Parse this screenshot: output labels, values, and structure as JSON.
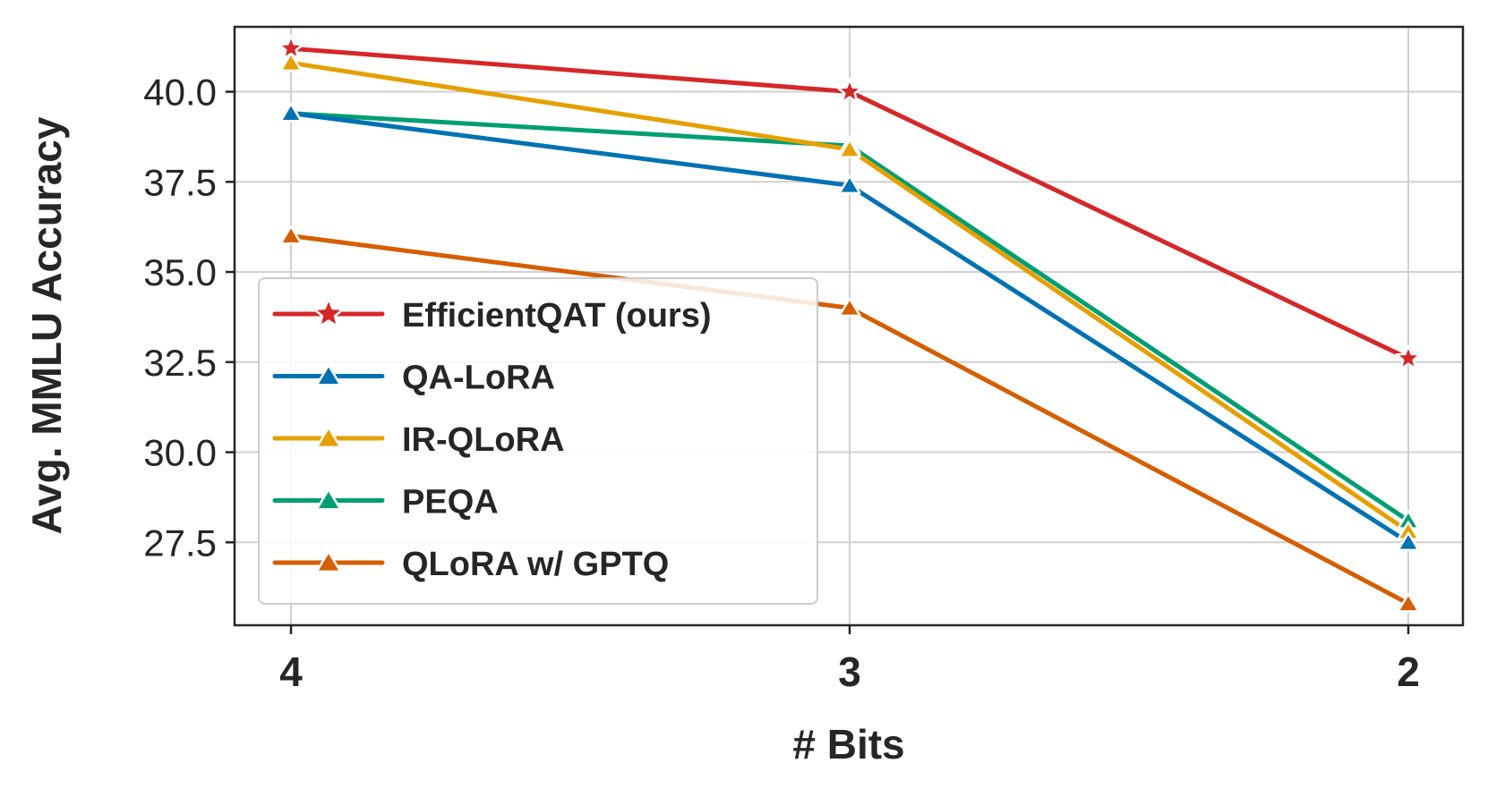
{
  "chart_data": {
    "type": "line",
    "xlabel": "# Bits",
    "ylabel": "Avg. MMLU Accuracy",
    "categories": [
      "4",
      "3",
      "2"
    ],
    "ylim": [
      25.2,
      41.8
    ],
    "yticks": [
      "27.5",
      "30.0",
      "32.5",
      "35.0",
      "37.5",
      "40.0"
    ],
    "grid": true,
    "legend_position": "lower-left",
    "series": [
      {
        "name": "EfficientQAT (ours)",
        "values": [
          41.2,
          40.0,
          32.6
        ],
        "color": "#d62728",
        "marker": "star"
      },
      {
        "name": "QA-LoRA",
        "values": [
          39.4,
          37.4,
          27.5
        ],
        "color": "#0072b2",
        "marker": "triangle"
      },
      {
        "name": "IR-QLoRA",
        "values": [
          40.8,
          38.4,
          27.8
        ],
        "color": "#e69f00",
        "marker": "triangle"
      },
      {
        "name": "PEQA",
        "values": [
          39.4,
          38.5,
          28.1
        ],
        "color": "#009e73",
        "marker": "triangle"
      },
      {
        "name": "QLoRA w/ GPTQ",
        "values": [
          36.0,
          34.0,
          25.8
        ],
        "color": "#d55e00",
        "marker": "triangle"
      }
    ]
  }
}
